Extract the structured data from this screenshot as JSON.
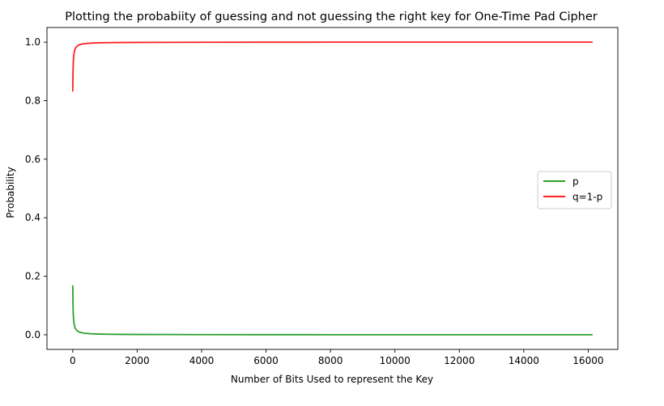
{
  "chart_data": {
    "type": "line",
    "title": "Plotting the probabiity of guessing and not guessing the right key for One-Time Pad Cipher",
    "xlabel": "Number of Bits Used to represent the Key",
    "ylabel": "Probability",
    "xlim": [
      -800,
      16920
    ],
    "ylim": [
      -0.05,
      1.05
    ],
    "x_ticks": [
      0,
      2000,
      4000,
      6000,
      8000,
      10000,
      12000,
      14000,
      16000
    ],
    "y_ticks": [
      0.0,
      0.2,
      0.4,
      0.6,
      0.8,
      1.0
    ],
    "x_tick_labels": [
      "0",
      "2000",
      "4000",
      "6000",
      "8000",
      "10000",
      "12000",
      "14000",
      "16000"
    ],
    "y_tick_labels": [
      "0.0",
      "0.2",
      "0.4",
      "0.6",
      "0.8",
      "1.0"
    ],
    "grid": false,
    "legend_position": "center-right",
    "series": [
      {
        "name": "p",
        "color": "#2ca02c",
        "x": [
          0,
          10,
          20,
          40,
          60,
          80,
          100,
          150,
          200,
          300,
          400,
          600,
          800,
          1000,
          1500,
          2000,
          3000,
          4000,
          6000,
          8000,
          10000,
          12000,
          14000,
          16000,
          16120
        ],
        "y": [
          0.167,
          0.0909,
          0.0625,
          0.0385,
          0.0278,
          0.0217,
          0.0179,
          0.0122,
          0.0093,
          0.0063,
          0.0048,
          0.0032,
          0.0024,
          0.0019,
          0.0013,
          0.001,
          0.0007,
          0.0005,
          0.0003,
          0.0002,
          0.0002,
          0.0001,
          0.0001,
          0.0001,
          0.0001
        ]
      },
      {
        "name": "q=1-p",
        "color": "#ff2020",
        "x": [
          0,
          10,
          20,
          40,
          60,
          80,
          100,
          150,
          200,
          300,
          400,
          600,
          800,
          1000,
          1500,
          2000,
          3000,
          4000,
          6000,
          8000,
          10000,
          12000,
          14000,
          16000,
          16120
        ],
        "y": [
          0.833,
          0.9091,
          0.9375,
          0.9615,
          0.9722,
          0.9783,
          0.9821,
          0.9878,
          0.9907,
          0.9937,
          0.9952,
          0.9968,
          0.9976,
          0.9981,
          0.9987,
          0.999,
          0.9993,
          0.9995,
          0.9997,
          0.9998,
          0.9998,
          0.9999,
          0.9999,
          0.9999,
          0.9999
        ]
      }
    ]
  }
}
